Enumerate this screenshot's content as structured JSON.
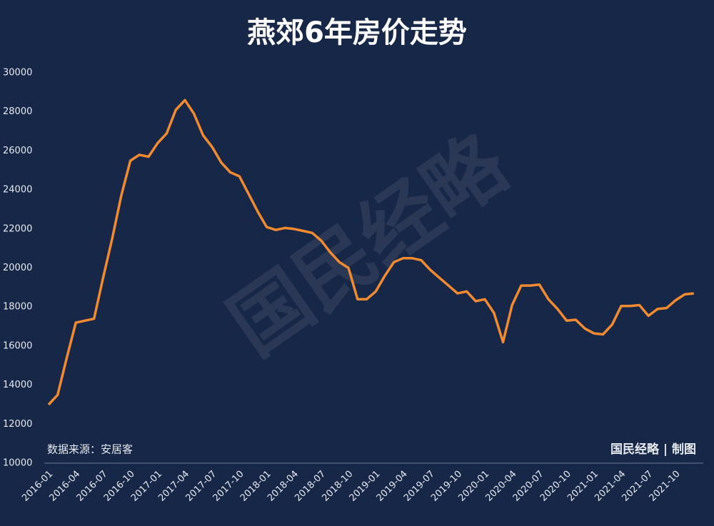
{
  "chart_data": {
    "type": "line",
    "title": "燕郊6年房价走势",
    "source": "数据来源：安居客",
    "credit": "国民经略 | 制图",
    "watermark": "国民经略",
    "categories": [
      "2016-01",
      null,
      null,
      "2016-04",
      null,
      null,
      "2016-07",
      null,
      null,
      "2016-10",
      null,
      null,
      "2017-01",
      null,
      null,
      "2017-04",
      null,
      null,
      "2017-07",
      null,
      null,
      "2017-10",
      null,
      null,
      "2018-01",
      null,
      null,
      "2018-04",
      null,
      null,
      "2018-07",
      null,
      null,
      "2018-10",
      null,
      null,
      "2019-01",
      null,
      null,
      "2019-04",
      null,
      null,
      "2019-07",
      null,
      null,
      "2019-10",
      null,
      null,
      "2020-01",
      null,
      null,
      "2020-04",
      null,
      null,
      "2020-07",
      null,
      null,
      "2020-10",
      null,
      null,
      "2021-01",
      null,
      null,
      "2021-04",
      null,
      null,
      "2021-07",
      null,
      null,
      "2021-10",
      null,
      null
    ],
    "series": [
      {
        "color": "#f28a30",
        "values": [
          13000,
          13500,
          15400,
          17200,
          17300,
          17400,
          19500,
          21500,
          23700,
          25500,
          25800,
          25700,
          26400,
          26900,
          28100,
          28600,
          27900,
          26800,
          26200,
          25400,
          24900,
          24700,
          23800,
          22900,
          22100,
          21950,
          22050,
          22000,
          21900,
          21800,
          21400,
          20800,
          20300,
          20000,
          18400,
          18400,
          18800,
          19600,
          20300,
          20500,
          20500,
          20400,
          19900,
          19500,
          19100,
          18700,
          18800,
          18300,
          18400,
          17700,
          16200,
          18100,
          19100,
          19100,
          19150,
          18400,
          17900,
          17300,
          17350,
          16900,
          16650,
          16600,
          17100,
          18050,
          18050,
          18100,
          17550,
          17900,
          17950,
          18350,
          18650,
          18700
        ]
      }
    ],
    "ylim": [
      10000,
      30000
    ],
    "yticks": [
      10000,
      12000,
      14000,
      16000,
      18000,
      20000,
      22000,
      24000,
      26000,
      28000,
      30000
    ]
  }
}
